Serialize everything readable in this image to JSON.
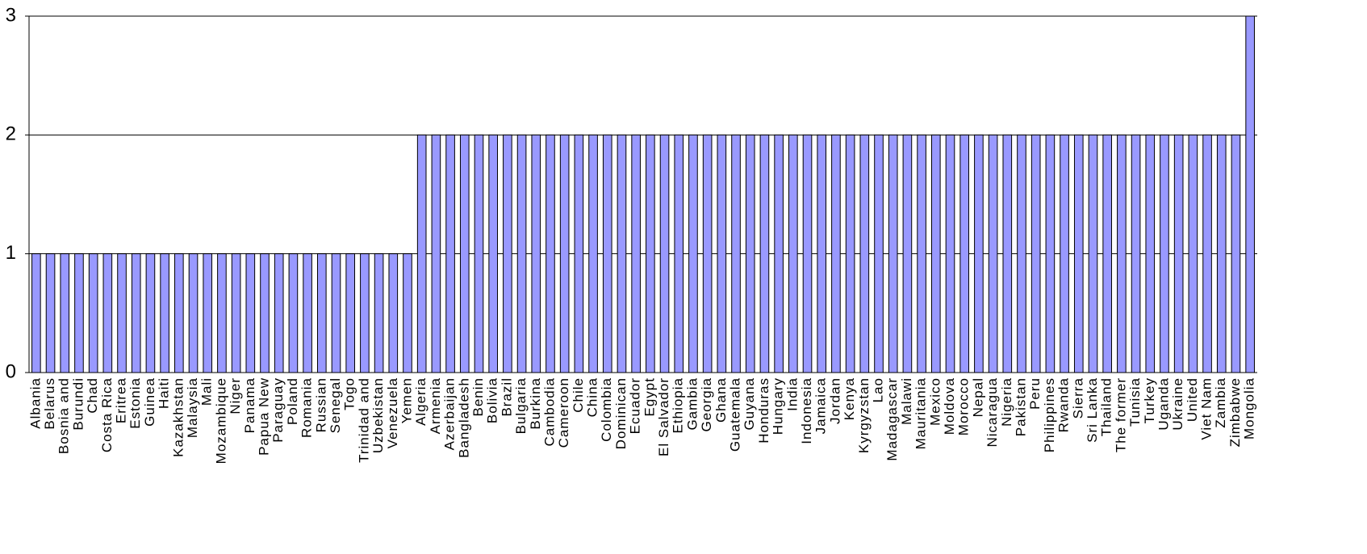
{
  "chart_data": {
    "type": "bar",
    "categories": [
      "Albania",
      "Belarus",
      "Bosnia and",
      "Burundi",
      "Chad",
      "Costa Rica",
      "Eritrea",
      "Estonia",
      "Guinea",
      "Haiti",
      "Kazakhstan",
      "Malaysia",
      "Mali",
      "Mozambique",
      "Niger",
      "Panama",
      "Papua New",
      "Paraguay",
      "Poland",
      "Romania",
      "Russian",
      "Senegal",
      "Togo",
      "Trinidad and",
      "Uzbekistan",
      "Venezuela",
      "Yemen",
      "Algeria",
      "Armenia",
      "Azerbaijan",
      "Bangladesh",
      "Benin",
      "Bolivia",
      "Brazil",
      "Bulgaria",
      "Burkina",
      "Cambodia",
      "Cameroon",
      "Chile",
      "China",
      "Colombia",
      "Dominican",
      "Ecuador",
      "Egypt",
      "El Salvador",
      "Ethiopia",
      "Gambia",
      "Georgia",
      "Ghana",
      "Guatemala",
      "Guyana",
      "Honduras",
      "Hungary",
      "India",
      "Indonesia",
      "Jamaica",
      "Jordan",
      "Kenya",
      "Kyrgyzstan",
      "Lao",
      "Madagascar",
      "Malawi",
      "Mauritania",
      "Mexico",
      "Moldova",
      "Morocco",
      "Nepal",
      "Nicaragua",
      "Nigeria",
      "Pakistan",
      "Peru",
      "Philippines",
      "Rwanda",
      "Sierra",
      "Sri Lanka",
      "Thailand",
      "The former",
      "Tunisia",
      "Turkey",
      "Uganda",
      "Ukraine",
      "United",
      "Viet Nam",
      "Zambia",
      "Zimbabwe",
      "Mongolia"
    ],
    "values": [
      1,
      1,
      1,
      1,
      1,
      1,
      1,
      1,
      1,
      1,
      1,
      1,
      1,
      1,
      1,
      1,
      1,
      1,
      1,
      1,
      1,
      1,
      1,
      1,
      1,
      1,
      1,
      2,
      2,
      2,
      2,
      2,
      2,
      2,
      2,
      2,
      2,
      2,
      2,
      2,
      2,
      2,
      2,
      2,
      2,
      2,
      2,
      2,
      2,
      2,
      2,
      2,
      2,
      2,
      2,
      2,
      2,
      2,
      2,
      2,
      2,
      2,
      2,
      2,
      2,
      2,
      2,
      2,
      2,
      2,
      2,
      2,
      2,
      2,
      2,
      2,
      2,
      2,
      2,
      2,
      2,
      2,
      2,
      2,
      2,
      3
    ],
    "color": "#9999ff",
    "ylim": [
      0,
      3
    ],
    "yticks": [
      0,
      1,
      2,
      3
    ],
    "grid": true
  }
}
